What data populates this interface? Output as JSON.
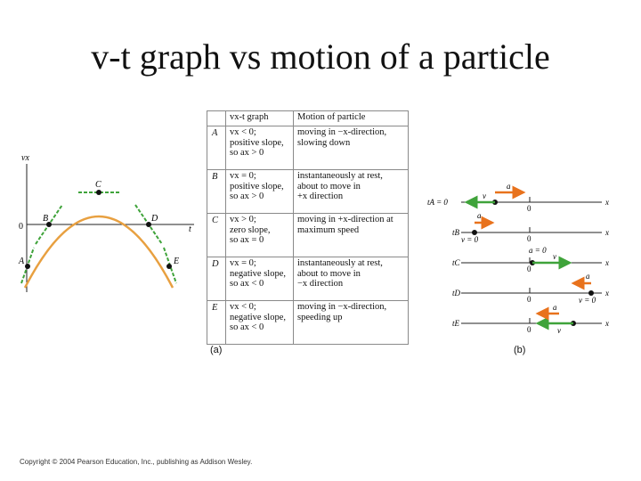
{
  "title": "v-t graph vs motion of a particle",
  "graph": {
    "y_axis_label": "vx",
    "x_axis_label": "t",
    "origin_label": "0",
    "points": [
      {
        "label": "A"
      },
      {
        "label": "B"
      },
      {
        "label": "C"
      },
      {
        "label": "D"
      },
      {
        "label": "E"
      }
    ],
    "curve_color": "#e8a040",
    "tangent_color": "#3fa33a"
  },
  "table": {
    "headers": [
      "vx-t graph",
      "Motion of particle"
    ],
    "rows": [
      {
        "letter": "A",
        "vt": [
          "vx < 0;",
          "positive slope,",
          "so ax > 0"
        ],
        "motion": [
          "moving in −x-direction,",
          "slowing down"
        ]
      },
      {
        "letter": "B",
        "vt": [
          "vx = 0;",
          "positive slope,",
          "so ax > 0"
        ],
        "motion": [
          "instantaneously at rest,",
          "about to move in",
          "+x direction"
        ]
      },
      {
        "letter": "C",
        "vt": [
          "vx > 0;",
          "zero slope,",
          "so ax = 0"
        ],
        "motion": [
          "moving in +x-direction at",
          "maximum speed"
        ]
      },
      {
        "letter": "D",
        "vt": [
          "vx = 0;",
          "negative slope,",
          "so ax < 0"
        ],
        "motion": [
          "instantaneously at rest,",
          "about to move in",
          "−x direction"
        ]
      },
      {
        "letter": "E",
        "vt": [
          "vx < 0;",
          "negative slope,",
          "so ax < 0"
        ],
        "motion": [
          "moving in −x-direction,",
          "speeding up"
        ]
      }
    ]
  },
  "motion_diagram": {
    "rows": [
      {
        "time": "tA = 0",
        "v_label": "v",
        "a_label": "a",
        "zero": "0",
        "x": "x"
      },
      {
        "time": "tB",
        "v_label": "v = 0",
        "a_label": "a",
        "zero": "0",
        "x": "x"
      },
      {
        "time": "tC",
        "v_label": "v",
        "a_label": "a = 0",
        "zero": "0",
        "x": "x"
      },
      {
        "time": "tD",
        "v_label": "v = 0",
        "a_label": "a",
        "zero": "0",
        "x": "x"
      },
      {
        "time": "tE",
        "v_label": "v",
        "a_label": "a",
        "zero": "0",
        "x": "x"
      }
    ],
    "v_color": "#3fa33a",
    "a_color": "#e8721c"
  },
  "caption_a": "(a)",
  "caption_b": "(b)",
  "copyright": "Copyright © 2004 Pearson Education, Inc., publishing as Addison Wesley."
}
